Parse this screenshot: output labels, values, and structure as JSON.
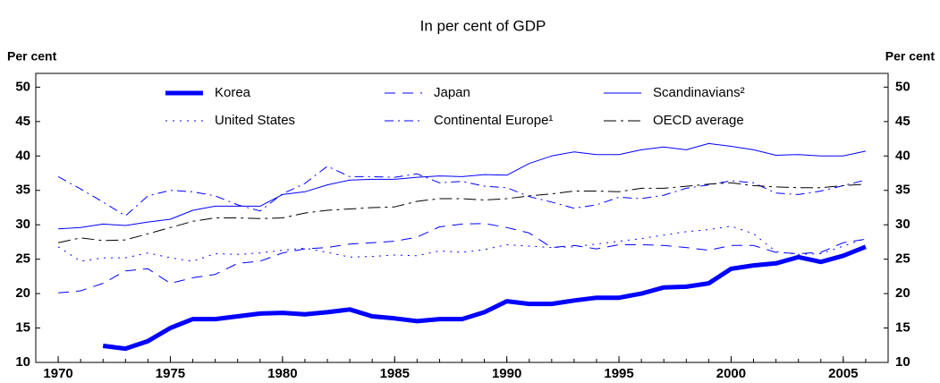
{
  "chart_data": {
    "type": "line",
    "title": "In per cent of GDP",
    "y_label": "Per cent",
    "y2_label": "Per cent",
    "x": [
      1970,
      1971,
      1972,
      1973,
      1974,
      1975,
      1976,
      1977,
      1978,
      1979,
      1980,
      1981,
      1982,
      1983,
      1984,
      1985,
      1986,
      1987,
      1988,
      1989,
      1990,
      1991,
      1992,
      1993,
      1994,
      1995,
      1996,
      1997,
      1998,
      1999,
      2000,
      2001,
      2002,
      2003,
      2004,
      2005,
      2006
    ],
    "xlim": [
      1969,
      2007
    ],
    "xticks": [
      1970,
      1975,
      1980,
      1985,
      1990,
      1995,
      2000,
      2005
    ],
    "ylim": [
      10,
      52
    ],
    "yticks": [
      10,
      15,
      20,
      25,
      30,
      35,
      40,
      45,
      50
    ],
    "y2lim": [
      10,
      52
    ],
    "y2ticks": [
      10,
      15,
      20,
      25,
      30,
      35,
      40,
      45,
      50
    ],
    "legend": "top",
    "grid": false,
    "series": [
      {
        "name": "Korea",
        "color": "#0000ff",
        "width": 5,
        "dash": "none",
        "values": [
          null,
          null,
          12.4,
          12.0,
          13.1,
          15.0,
          16.3,
          16.3,
          16.7,
          17.1,
          17.2,
          17.0,
          17.3,
          17.7,
          16.7,
          16.4,
          16.0,
          16.3,
          16.3,
          17.3,
          18.9,
          18.5,
          18.5,
          19.0,
          19.4,
          19.4,
          20.0,
          20.9,
          21.0,
          21.5,
          23.6,
          24.1,
          24.4,
          25.3,
          24.6,
          25.5,
          26.8
        ]
      },
      {
        "name": "United States",
        "color": "#0000ff",
        "width": 1,
        "dash": "2 6",
        "values": [
          26.8,
          24.7,
          25.2,
          25.2,
          25.9,
          25.2,
          24.7,
          25.8,
          25.7,
          25.9,
          26.3,
          26.6,
          26.0,
          25.3,
          25.4,
          25.6,
          25.5,
          26.2,
          26.0,
          26.4,
          27.1,
          26.9,
          26.7,
          26.8,
          27.2,
          27.6,
          28.0,
          28.5,
          29.0,
          29.3,
          29.8,
          28.7,
          26.1,
          25.7,
          25.8,
          26.9,
          28.0
        ]
      },
      {
        "name": "Japan",
        "color": "#0000ff",
        "width": 1,
        "dash": "12 8",
        "values": [
          20.1,
          20.4,
          21.5,
          23.3,
          23.6,
          21.5,
          22.3,
          22.8,
          24.4,
          24.7,
          25.9,
          26.5,
          26.7,
          27.2,
          27.4,
          27.6,
          28.2,
          29.7,
          30.1,
          30.2,
          29.6,
          28.8,
          26.7,
          27.0,
          26.5,
          27.1,
          27.1,
          27.0,
          26.7,
          26.3,
          27.0,
          27.0,
          26.0,
          25.8,
          26.0,
          27.4,
          27.9
        ]
      },
      {
        "name": "Continental Europe¹",
        "color": "#0000ff",
        "width": 1,
        "dash": "10 5 2 5",
        "values": [
          37.0,
          35.2,
          33.3,
          31.3,
          34.2,
          35.0,
          34.8,
          34.2,
          32.9,
          32.0,
          34.5,
          36.0,
          38.5,
          37.0,
          37.0,
          36.9,
          37.4,
          36.1,
          36.3,
          35.6,
          35.4,
          34.1,
          33.3,
          32.4,
          32.9,
          34.0,
          33.8,
          34.3,
          35.3,
          35.8,
          36.4,
          36.1,
          34.6,
          34.4,
          34.9,
          35.7,
          36.5
        ]
      },
      {
        "name": "Scandinavians²",
        "color": "#0000ff",
        "width": 1,
        "dash": "none",
        "values": [
          29.4,
          29.6,
          30.1,
          29.9,
          30.4,
          30.8,
          32.1,
          32.7,
          32.7,
          32.7,
          34.4,
          34.8,
          35.8,
          36.5,
          36.6,
          36.6,
          36.9,
          37.1,
          37.0,
          37.3,
          37.2,
          38.9,
          40.0,
          40.6,
          40.2,
          40.2,
          40.9,
          41.3,
          40.9,
          41.8,
          41.4,
          40.9,
          40.1,
          40.2,
          40.0,
          40.0,
          40.7
        ]
      },
      {
        "name": "OECD average",
        "color": "#000000",
        "width": 1,
        "dash": "14 5 3 5",
        "values": [
          27.4,
          28.1,
          27.7,
          27.8,
          28.7,
          29.6,
          30.5,
          31.0,
          31.0,
          30.9,
          31.0,
          31.7,
          32.1,
          32.3,
          32.5,
          32.6,
          33.4,
          33.8,
          33.8,
          33.6,
          33.8,
          34.2,
          34.5,
          34.9,
          34.9,
          34.8,
          35.3,
          35.3,
          35.6,
          35.9,
          36.1,
          35.7,
          35.5,
          35.4,
          35.4,
          35.7,
          35.9
        ]
      }
    ]
  }
}
